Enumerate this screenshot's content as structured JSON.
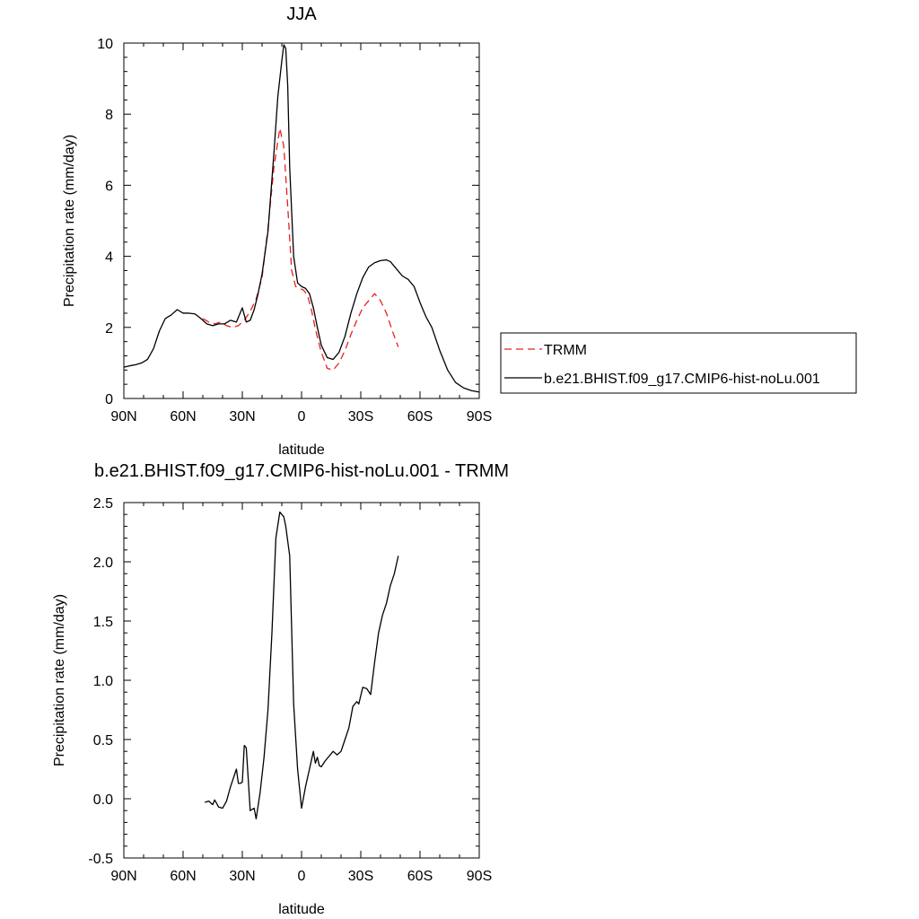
{
  "chart_data": [
    {
      "type": "line",
      "title": "JJA",
      "xlabel": "latitude",
      "ylabel": "Precipitation rate (mm/day)",
      "xlim": [
        90,
        -90
      ],
      "ylim": [
        0,
        10
      ],
      "xticks": [
        90,
        60,
        30,
        0,
        -30,
        -60,
        -90
      ],
      "xtick_labels": [
        "90N",
        "60N",
        "30N",
        "0",
        "30S",
        "60S",
        "90S"
      ],
      "yticks": [
        0,
        2,
        4,
        6,
        8,
        10
      ],
      "ytick_labels": [
        "0",
        "2",
        "4",
        "6",
        "8",
        "10"
      ],
      "grid": false,
      "legend_position": "right",
      "series": [
        {
          "name": "TRMM",
          "color": "#e8201f",
          "dash": "dashed",
          "x": [
            50,
            47,
            44,
            41,
            38,
            35,
            32,
            29,
            26,
            23,
            20,
            17,
            14,
            11,
            9,
            7,
            5,
            3,
            1,
            -1,
            -3,
            -5,
            -7,
            -10,
            -13,
            -16,
            -19,
            -22,
            -25,
            -28,
            -31,
            -34,
            -37,
            -40,
            -43,
            -46,
            -49
          ],
          "y": [
            2.25,
            2.15,
            2.1,
            2.15,
            2.05,
            2.0,
            2.05,
            2.2,
            2.45,
            2.8,
            3.4,
            4.8,
            6.5,
            7.6,
            7.1,
            5.4,
            3.6,
            3.15,
            3.1,
            3.05,
            2.9,
            2.5,
            1.95,
            1.3,
            0.85,
            0.8,
            1.0,
            1.35,
            1.8,
            2.2,
            2.55,
            2.75,
            2.95,
            2.75,
            2.4,
            1.9,
            1.45
          ]
        },
        {
          "name": "b.e21.BHIST.f09_g17.CMIP6-hist-noLu.001",
          "color": "#000000",
          "dash": "solid",
          "x": [
            90,
            87,
            84,
            81,
            78,
            75,
            72,
            69,
            66,
            63,
            60,
            57,
            54,
            51,
            48,
            45,
            42,
            39,
            36,
            33,
            30,
            28,
            26,
            24,
            22,
            20,
            17,
            14,
            12,
            10,
            9,
            8,
            7,
            6,
            4,
            2,
            0,
            -2,
            -4,
            -6,
            -8,
            -10,
            -13,
            -16,
            -19,
            -22,
            -25,
            -28,
            -31,
            -34,
            -37,
            -40,
            -43,
            -45,
            -48,
            -51,
            -54,
            -57,
            -60,
            -63,
            -66,
            -70,
            -74,
            -78,
            -82,
            -86,
            -90
          ],
          "y": [
            0.88,
            0.92,
            0.95,
            1.0,
            1.1,
            1.4,
            1.9,
            2.25,
            2.35,
            2.5,
            2.4,
            2.4,
            2.38,
            2.25,
            2.1,
            2.05,
            2.1,
            2.1,
            2.2,
            2.15,
            2.55,
            2.15,
            2.2,
            2.5,
            2.95,
            3.5,
            4.7,
            6.9,
            8.5,
            9.5,
            9.95,
            9.85,
            8.8,
            6.5,
            4.0,
            3.25,
            3.15,
            3.1,
            2.95,
            2.55,
            2.0,
            1.5,
            1.15,
            1.1,
            1.3,
            1.75,
            2.4,
            2.95,
            3.4,
            3.7,
            3.82,
            3.88,
            3.9,
            3.85,
            3.65,
            3.45,
            3.35,
            3.15,
            2.7,
            2.3,
            2.0,
            1.35,
            0.8,
            0.45,
            0.3,
            0.22,
            0.18
          ]
        }
      ]
    },
    {
      "type": "line",
      "title": "b.e21.BHIST.f09_g17.CMIP6-hist-noLu.001 - TRMM",
      "xlabel": "latitude",
      "ylabel": "Precipitation rate (mm/day)",
      "xlim": [
        90,
        -90
      ],
      "ylim": [
        -0.5,
        2.5
      ],
      "xticks": [
        90,
        60,
        30,
        0,
        -30,
        -60,
        -90
      ],
      "xtick_labels": [
        "90N",
        "60N",
        "30N",
        "0",
        "30S",
        "60S",
        "90S"
      ],
      "yticks": [
        -0.5,
        0.0,
        0.5,
        1.0,
        1.5,
        2.0,
        2.5
      ],
      "ytick_labels": [
        "-0.5",
        "0.0",
        "0.5",
        "1.0",
        "1.5",
        "2.0",
        "2.5"
      ],
      "grid": false,
      "series": [
        {
          "color": "#000000",
          "dash": "solid",
          "x": [
            49,
            47,
            45,
            44,
            42,
            40,
            38,
            36,
            34,
            33,
            32,
            31,
            30,
            29,
            28,
            26,
            24,
            23,
            21,
            19,
            17,
            15,
            13,
            11,
            9,
            8,
            6,
            4,
            2,
            0,
            -2,
            -4,
            -6,
            -7,
            -8,
            -9,
            -10,
            -12,
            -14,
            -16,
            -18,
            -20,
            -22,
            -24,
            -26,
            -28,
            -29,
            -31,
            -33,
            -35,
            -37,
            -39,
            -41,
            -43,
            -45,
            -47,
            -49
          ],
          "y": [
            -0.03,
            -0.02,
            -0.05,
            -0.01,
            -0.07,
            -0.08,
            -0.02,
            0.1,
            0.2,
            0.25,
            0.13,
            0.13,
            0.14,
            0.45,
            0.43,
            -0.1,
            -0.08,
            -0.17,
            0.05,
            0.35,
            0.75,
            1.4,
            2.2,
            2.42,
            2.38,
            2.3,
            2.05,
            0.8,
            0.25,
            -0.08,
            0.1,
            0.25,
            0.4,
            0.3,
            0.35,
            0.28,
            0.27,
            0.32,
            0.36,
            0.4,
            0.37,
            0.4,
            0.5,
            0.6,
            0.78,
            0.82,
            0.8,
            0.94,
            0.93,
            0.88,
            1.15,
            1.4,
            1.55,
            1.65,
            1.8,
            1.9,
            2.05
          ]
        }
      ]
    }
  ]
}
